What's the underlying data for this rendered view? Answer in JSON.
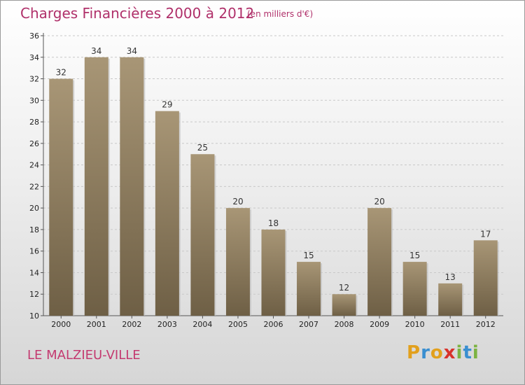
{
  "header": {
    "title": "Charges Financières 2000 à 2012",
    "unit": "(en milliers d'€)"
  },
  "footer": {
    "commune": "LE MALZIEU-VILLE",
    "logo_letters": [
      "P",
      "r",
      "o",
      "x",
      "i",
      "t",
      "i"
    ],
    "logo_colors": [
      "#e2a01d",
      "#3a8fd0",
      "#e2a01d",
      "#d8322b",
      "#7cb342",
      "#3a8fd0",
      "#7cb342"
    ]
  },
  "chart_data": {
    "type": "bar",
    "categories": [
      "2000",
      "2001",
      "2002",
      "2003",
      "2004",
      "2005",
      "2006",
      "2007",
      "2008",
      "2009",
      "2010",
      "2011",
      "2012"
    ],
    "values": [
      32,
      34,
      34,
      29,
      25,
      20,
      18,
      15,
      12,
      20,
      15,
      13,
      17
    ],
    "data_labels": [
      "32",
      "34",
      "34",
      "29",
      "25",
      "20",
      "18",
      "15",
      "12",
      "20",
      "15",
      "13",
      "17"
    ],
    "ylim": [
      10,
      36
    ],
    "yticks": [
      "10",
      "12",
      "14",
      "16",
      "18",
      "20",
      "22",
      "24",
      "26",
      "28",
      "30",
      "32",
      "34",
      "36"
    ],
    "grid": true,
    "bar_color": "#8b7a5e"
  }
}
